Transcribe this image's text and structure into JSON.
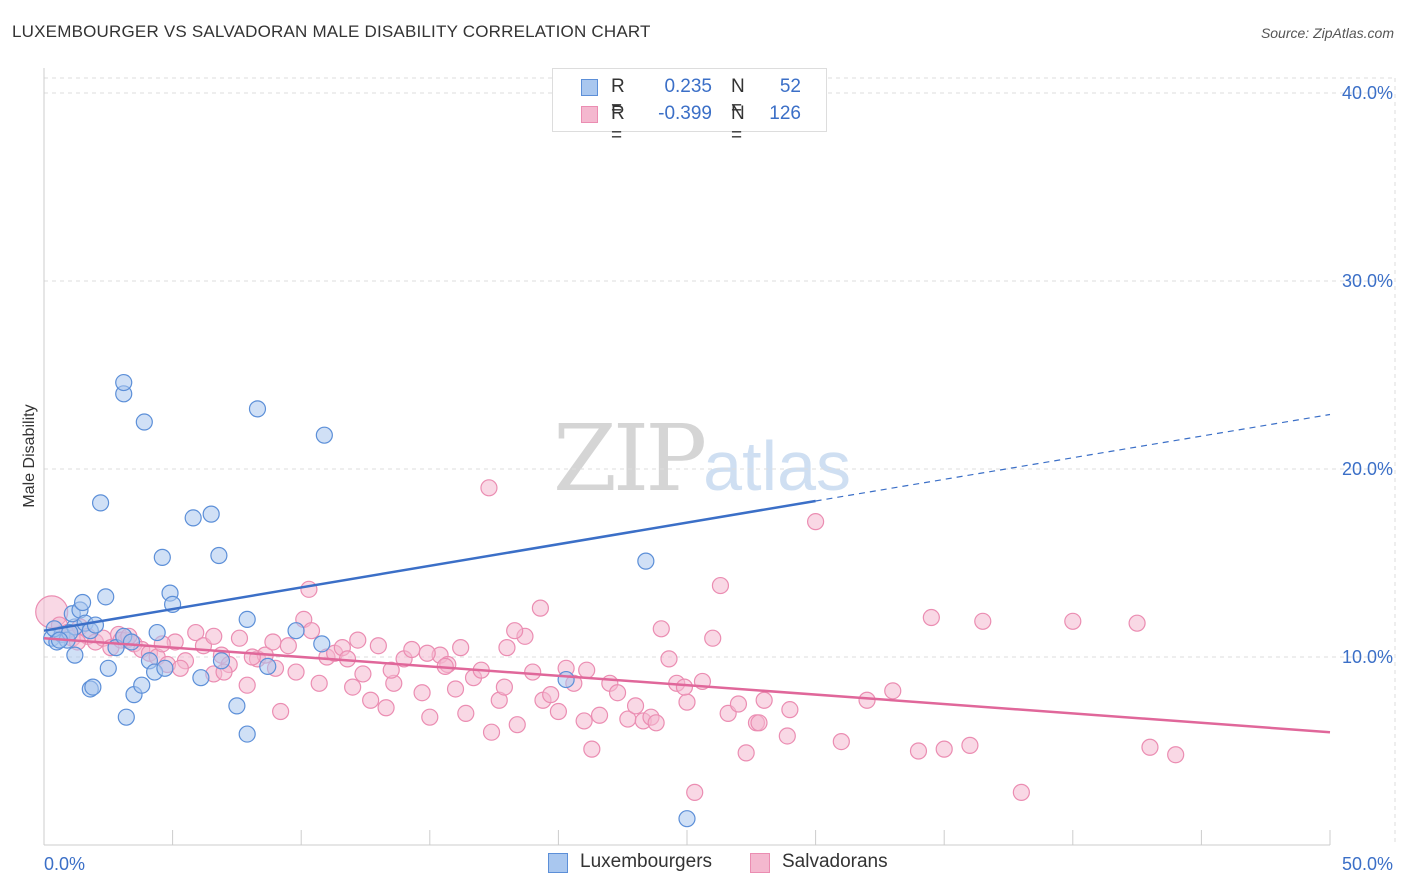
{
  "title": "LUXEMBOURGER VS SALVADORAN MALE DISABILITY CORRELATION CHART",
  "source": "Source: ZipAtlas.com",
  "watermark": {
    "left": "ZIP",
    "right": "atlas"
  },
  "colors": {
    "blue": "#3b6fc7",
    "blue_fill": "#a9c7ef",
    "blue_stroke": "#5c8fd8",
    "pink": "#e0679a",
    "pink_fill": "#f4b8cf",
    "pink_stroke": "#eb8db2",
    "grid": "#dddddd",
    "tick_text": "#3b6fc7"
  },
  "legend": {
    "rows": [
      {
        "r_label": "R =",
        "r_value": "0.235",
        "n_label": "N =",
        "n_value": "52"
      },
      {
        "r_label": "R =",
        "r_value": "-0.399",
        "n_label": "N =",
        "n_value": "126"
      }
    ]
  },
  "bottom_legend": {
    "blue_label": "Luxembourgers",
    "pink_label": "Salvadorans"
  },
  "chart_data": {
    "type": "scatter",
    "title": "LUXEMBOURGER VS SALVADORAN MALE DISABILITY CORRELATION CHART",
    "xlabel": "",
    "ylabel": "Male Disability",
    "xlim": [
      0,
      50
    ],
    "ylim": [
      0,
      40.8
    ],
    "x_tick_labels": {
      "min": "0.0%",
      "max": "50.0%"
    },
    "y_ticks": [
      10,
      20,
      30,
      40
    ],
    "y_tick_labels": [
      "10.0%",
      "20.0%",
      "30.0%",
      "40.0%"
    ],
    "x_tick_positions": [
      0,
      5,
      10,
      15,
      20,
      25,
      30,
      35,
      40,
      45,
      50
    ],
    "series": [
      {
        "name": "Luxembourgers",
        "color": "blue",
        "r": 0.235,
        "n": 52,
        "trend": {
          "x0": 0,
          "y0": 11.4,
          "x1": 30,
          "y1": 18.3,
          "dashed_to_x": 50,
          "dashed_to_y": 22.9
        },
        "points": [
          [
            0.3,
            11.0
          ],
          [
            0.5,
            10.8
          ],
          [
            0.7,
            11.2
          ],
          [
            0.4,
            11.5
          ],
          [
            0.9,
            10.9
          ],
          [
            1.2,
            11.6
          ],
          [
            1.0,
            11.3
          ],
          [
            1.1,
            12.3
          ],
          [
            1.4,
            12.5
          ],
          [
            1.5,
            12.9
          ],
          [
            1.6,
            11.8
          ],
          [
            1.8,
            11.4
          ],
          [
            2.0,
            11.7
          ],
          [
            1.2,
            10.1
          ],
          [
            2.4,
            13.2
          ],
          [
            2.5,
            9.4
          ],
          [
            2.8,
            10.5
          ],
          [
            3.1,
            11.1
          ],
          [
            1.8,
            8.3
          ],
          [
            1.9,
            8.4
          ],
          [
            3.5,
            8.0
          ],
          [
            3.8,
            8.5
          ],
          [
            3.2,
            6.8
          ],
          [
            4.1,
            9.8
          ],
          [
            4.3,
            9.2
          ],
          [
            4.4,
            11.3
          ],
          [
            4.7,
            9.4
          ],
          [
            4.9,
            13.4
          ],
          [
            5.0,
            12.8
          ],
          [
            4.6,
            15.3
          ],
          [
            5.8,
            17.4
          ],
          [
            6.5,
            17.6
          ],
          [
            6.8,
            15.4
          ],
          [
            6.9,
            9.8
          ],
          [
            6.1,
            8.9
          ],
          [
            7.5,
            7.4
          ],
          [
            7.9,
            5.9
          ],
          [
            7.9,
            12.0
          ],
          [
            8.7,
            9.5
          ],
          [
            9.8,
            11.4
          ],
          [
            10.8,
            10.7
          ],
          [
            2.2,
            18.2
          ],
          [
            3.1,
            24.0
          ],
          [
            3.1,
            24.6
          ],
          [
            3.9,
            22.5
          ],
          [
            8.3,
            23.2
          ],
          [
            10.9,
            21.8
          ],
          [
            23.4,
            15.1
          ],
          [
            25.0,
            1.4
          ],
          [
            20.3,
            8.8
          ],
          [
            0.6,
            10.9
          ],
          [
            3.4,
            10.8
          ]
        ]
      },
      {
        "name": "Salvadorans",
        "color": "pink",
        "r": -0.399,
        "n": 126,
        "trend": {
          "x0": 0,
          "y0": 11.0,
          "x1": 50,
          "y1": 6.0
        },
        "points": [
          [
            0.3,
            12.4
          ],
          [
            0.6,
            11.7
          ],
          [
            0.9,
            11.3
          ],
          [
            1.1,
            11.0
          ],
          [
            1.4,
            11.6
          ],
          [
            1.7,
            11.1
          ],
          [
            2.0,
            10.8
          ],
          [
            2.3,
            11.0
          ],
          [
            2.6,
            10.5
          ],
          [
            2.9,
            11.2
          ],
          [
            3.2,
            10.9
          ],
          [
            3.5,
            10.7
          ],
          [
            3.8,
            10.4
          ],
          [
            4.1,
            10.2
          ],
          [
            4.4,
            10.0
          ],
          [
            4.8,
            9.6
          ],
          [
            5.1,
            10.8
          ],
          [
            5.5,
            9.8
          ],
          [
            5.9,
            11.3
          ],
          [
            6.2,
            10.6
          ],
          [
            6.6,
            9.1
          ],
          [
            6.9,
            10.1
          ],
          [
            7.2,
            9.6
          ],
          [
            7.6,
            11.0
          ],
          [
            7.9,
            8.5
          ],
          [
            8.3,
            9.9
          ],
          [
            8.6,
            10.1
          ],
          [
            8.9,
            10.8
          ],
          [
            9.2,
            7.1
          ],
          [
            9.5,
            10.6
          ],
          [
            9.8,
            9.2
          ],
          [
            10.1,
            12.0
          ],
          [
            10.4,
            11.4
          ],
          [
            10.7,
            8.6
          ],
          [
            11.0,
            10.0
          ],
          [
            11.3,
            10.2
          ],
          [
            11.6,
            10.5
          ],
          [
            12.0,
            8.4
          ],
          [
            12.4,
            9.1
          ],
          [
            12.7,
            7.7
          ],
          [
            13.0,
            10.6
          ],
          [
            13.3,
            7.3
          ],
          [
            13.6,
            8.6
          ],
          [
            14.0,
            9.9
          ],
          [
            14.3,
            10.4
          ],
          [
            14.7,
            8.1
          ],
          [
            15.0,
            6.8
          ],
          [
            15.4,
            10.1
          ],
          [
            15.7,
            9.6
          ],
          [
            16.0,
            8.3
          ],
          [
            16.4,
            7.0
          ],
          [
            16.7,
            8.9
          ],
          [
            17.0,
            9.3
          ],
          [
            17.4,
            6.0
          ],
          [
            17.7,
            7.7
          ],
          [
            18.0,
            10.5
          ],
          [
            18.4,
            6.4
          ],
          [
            18.7,
            11.1
          ],
          [
            19.0,
            9.2
          ],
          [
            19.4,
            7.7
          ],
          [
            19.7,
            8.0
          ],
          [
            20.0,
            7.1
          ],
          [
            20.3,
            9.4
          ],
          [
            20.6,
            8.6
          ],
          [
            21.0,
            6.6
          ],
          [
            21.3,
            5.1
          ],
          [
            21.6,
            6.9
          ],
          [
            22.0,
            8.6
          ],
          [
            22.3,
            8.1
          ],
          [
            22.7,
            6.7
          ],
          [
            23.0,
            7.4
          ],
          [
            23.3,
            6.6
          ],
          [
            23.6,
            6.8
          ],
          [
            24.0,
            11.5
          ],
          [
            24.3,
            9.9
          ],
          [
            24.6,
            8.6
          ],
          [
            25.0,
            7.6
          ],
          [
            25.3,
            2.8
          ],
          [
            25.6,
            8.7
          ],
          [
            26.0,
            11.0
          ],
          [
            26.3,
            13.8
          ],
          [
            26.6,
            7.0
          ],
          [
            27.0,
            7.5
          ],
          [
            27.3,
            4.9
          ],
          [
            27.7,
            6.5
          ],
          [
            28.0,
            7.7
          ],
          [
            29.0,
            7.2
          ],
          [
            30.0,
            17.2
          ],
          [
            31.0,
            5.5
          ],
          [
            32.0,
            7.7
          ],
          [
            33.0,
            8.2
          ],
          [
            34.0,
            5.0
          ],
          [
            34.5,
            12.1
          ],
          [
            35.0,
            5.1
          ],
          [
            36.0,
            5.3
          ],
          [
            36.5,
            11.9
          ],
          [
            38.0,
            2.8
          ],
          [
            40.0,
            11.9
          ],
          [
            42.5,
            11.8
          ],
          [
            43.0,
            5.2
          ],
          [
            44.0,
            4.8
          ],
          [
            17.3,
            19.0
          ],
          [
            19.3,
            12.6
          ],
          [
            18.3,
            11.4
          ],
          [
            10.3,
            13.6
          ],
          [
            6.6,
            11.1
          ],
          [
            12.2,
            10.9
          ],
          [
            14.9,
            10.2
          ],
          [
            16.2,
            10.5
          ],
          [
            3.0,
            10.9
          ],
          [
            3.3,
            11.1
          ],
          [
            4.6,
            10.7
          ],
          [
            5.3,
            9.4
          ],
          [
            7.0,
            9.2
          ],
          [
            8.1,
            10.0
          ],
          [
            9.0,
            9.4
          ],
          [
            11.8,
            9.9
          ],
          [
            13.5,
            9.3
          ],
          [
            15.6,
            9.5
          ],
          [
            17.9,
            8.4
          ],
          [
            21.1,
            9.3
          ],
          [
            23.8,
            6.5
          ],
          [
            24.9,
            8.4
          ],
          [
            27.8,
            6.5
          ],
          [
            28.9,
            5.8
          ],
          [
            1.3,
            10.8
          ]
        ]
      }
    ]
  }
}
